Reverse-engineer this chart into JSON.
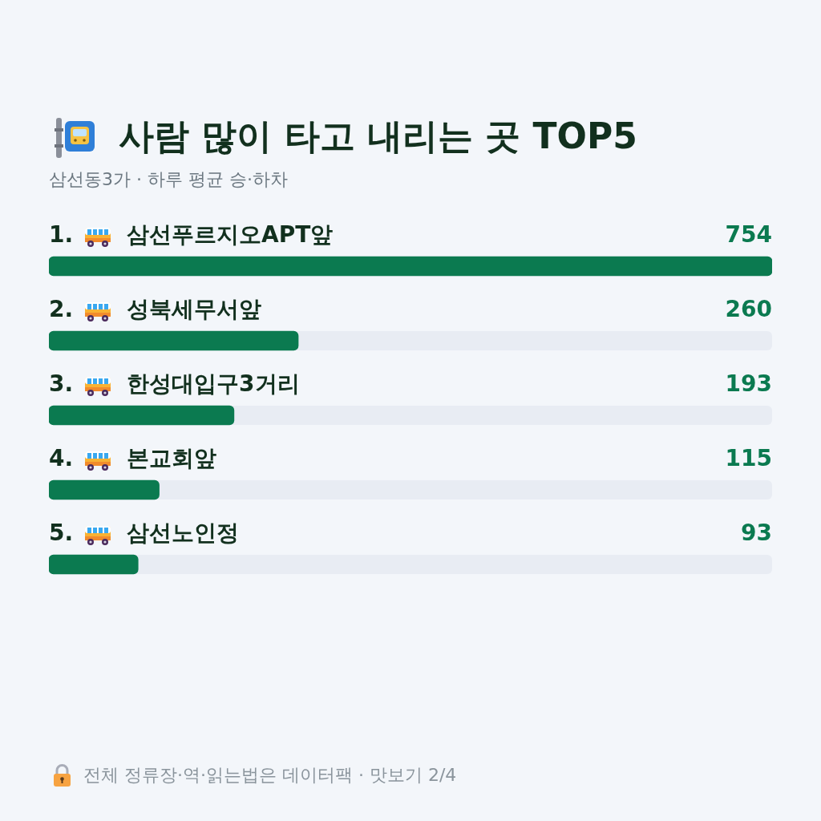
{
  "chart_data": {
    "type": "bar",
    "orientation": "horizontal",
    "title": "사람 많이 타고 내리는 곳 TOP5",
    "subtitle": "삼선동3가 · 하루 평균 승·하차",
    "categories": [
      "1. 삼선푸르지오APT앞",
      "2. 성북세무서앞",
      "3. 한성대입구3거리",
      "4. 본교회앞",
      "5. 삼선노인정"
    ],
    "values": [
      754,
      260,
      193,
      115,
      93
    ],
    "color": "#0b7a50",
    "xlim": [
      0,
      754
    ],
    "data_labels": true,
    "tick_labels": "y",
    "annotations": [
      "전체 정류장·역·읽는법은 데이터팩 · 맛보기 2/4"
    ]
  }
}
